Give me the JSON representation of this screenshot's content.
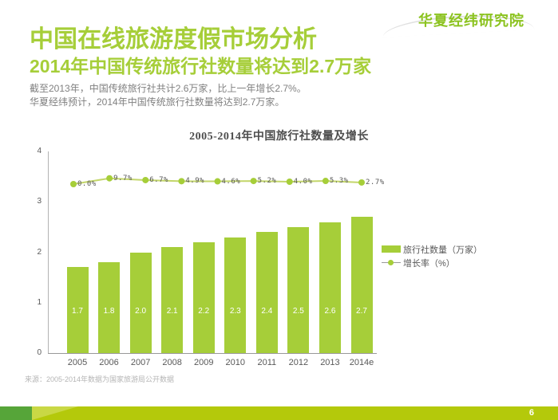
{
  "logo": {
    "text": "华夏经纬研究院"
  },
  "header": {
    "title": "中国在线旅游度假市场分析",
    "subtitle": "2014年中国传统旅行社数量将达到2.7万家"
  },
  "body": {
    "line1": "截至2013年，中国传统旅行社共计2.6万家，比上一年增长2.7%。",
    "line2": "华夏经纬预计，2014年中国传统旅行社数量将达到2.7万家。"
  },
  "chart_data": {
    "type": "bar",
    "title": "2005-2014年中国旅行社数量及增长",
    "categories": [
      "2005",
      "2006",
      "2007",
      "2008",
      "2009",
      "2010",
      "2011",
      "2012",
      "2013",
      "2014e"
    ],
    "series": [
      {
        "name": "旅行社数量（万家）",
        "type": "bar",
        "values": [
          1.7,
          1.8,
          2.0,
          2.1,
          2.2,
          2.3,
          2.4,
          2.5,
          2.6,
          2.7
        ]
      },
      {
        "name": "增长率（%）",
        "type": "line",
        "values": [
          0.0,
          9.7,
          6.7,
          4.9,
          4.6,
          5.2,
          4.0,
          5.3,
          2.7
        ]
      }
    ],
    "yticks": [
      0,
      1,
      2,
      3,
      4
    ],
    "ylim": [
      0,
      4
    ],
    "grid": false,
    "legend_position": "right",
    "colors": {
      "bar": "#a6ce39",
      "line": "#c3d66a",
      "dot": "#a6ce39",
      "accent_green": "#a6ce39"
    }
  },
  "source": "来源：2005-2014年数据为国家旅游局公开数据",
  "footer": {
    "page_number": "6"
  }
}
